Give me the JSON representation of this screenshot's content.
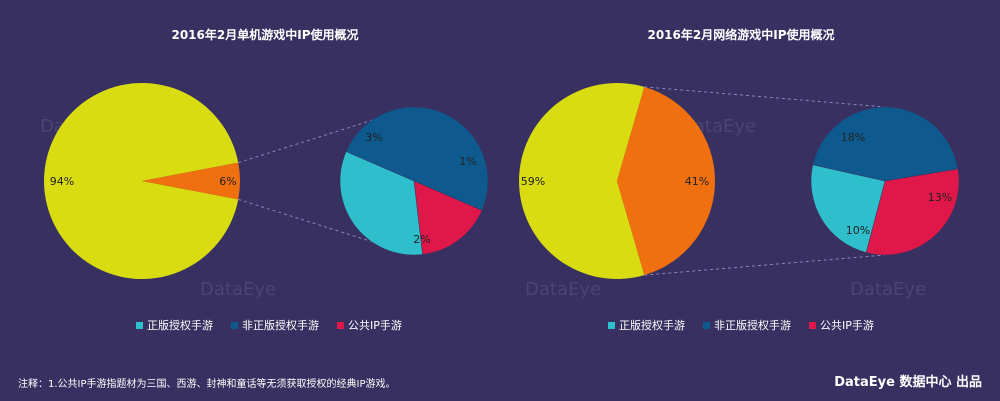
{
  "titles": {
    "left": "2016年2月单机游戏中IP使用概况",
    "right": "2016年2月网络游戏中IP使用概况"
  },
  "legend": [
    {
      "label": "正版授权手游",
      "color": "#2fbfcc"
    },
    {
      "label": "非正版授权手游",
      "color": "#0e5a8e"
    },
    {
      "label": "公共IP手游",
      "color": "#e0184a"
    }
  ],
  "watermark": "DataEye",
  "footnote": "注释：1.公共IP手游指题材为三国、西游、封神和童话等无须获取授权的经典IP游戏。",
  "credit": "DataEye 数据中心 出品",
  "colors": {
    "yellow": "#d8dc10",
    "orange": "#f07010"
  },
  "chart_data": [
    {
      "type": "pie",
      "title": "2016年2月单机游戏中IP使用概况",
      "main_pie": {
        "slices": [
          {
            "label": "94%",
            "value": 94,
            "color": "#d8dc10"
          },
          {
            "label": "6%",
            "value": 6,
            "color": "#f07010"
          }
        ]
      },
      "sub_pie": {
        "slices": [
          {
            "label": "3%",
            "value": 3,
            "color": "#0e5a8e",
            "series": "非正版授权手游"
          },
          {
            "label": "1%",
            "value": 1,
            "color": "#e0184a",
            "series": "公共IP手游"
          },
          {
            "label": "2%",
            "value": 2,
            "color": "#2fbfcc",
            "series": "正版授权手游"
          }
        ]
      }
    },
    {
      "type": "pie",
      "title": "2016年2月网络游戏中IP使用概况",
      "main_pie": {
        "slices": [
          {
            "label": "59%",
            "value": 59,
            "color": "#d8dc10"
          },
          {
            "label": "41%",
            "value": 41,
            "color": "#f07010"
          }
        ]
      },
      "sub_pie": {
        "slices": [
          {
            "label": "18%",
            "value": 18,
            "color": "#0e5a8e",
            "series": "非正版授权手游"
          },
          {
            "label": "13%",
            "value": 13,
            "color": "#e0184a",
            "series": "公共IP手游"
          },
          {
            "label": "10%",
            "value": 10,
            "color": "#2fbfcc",
            "series": "正版授权手游"
          }
        ]
      }
    }
  ]
}
